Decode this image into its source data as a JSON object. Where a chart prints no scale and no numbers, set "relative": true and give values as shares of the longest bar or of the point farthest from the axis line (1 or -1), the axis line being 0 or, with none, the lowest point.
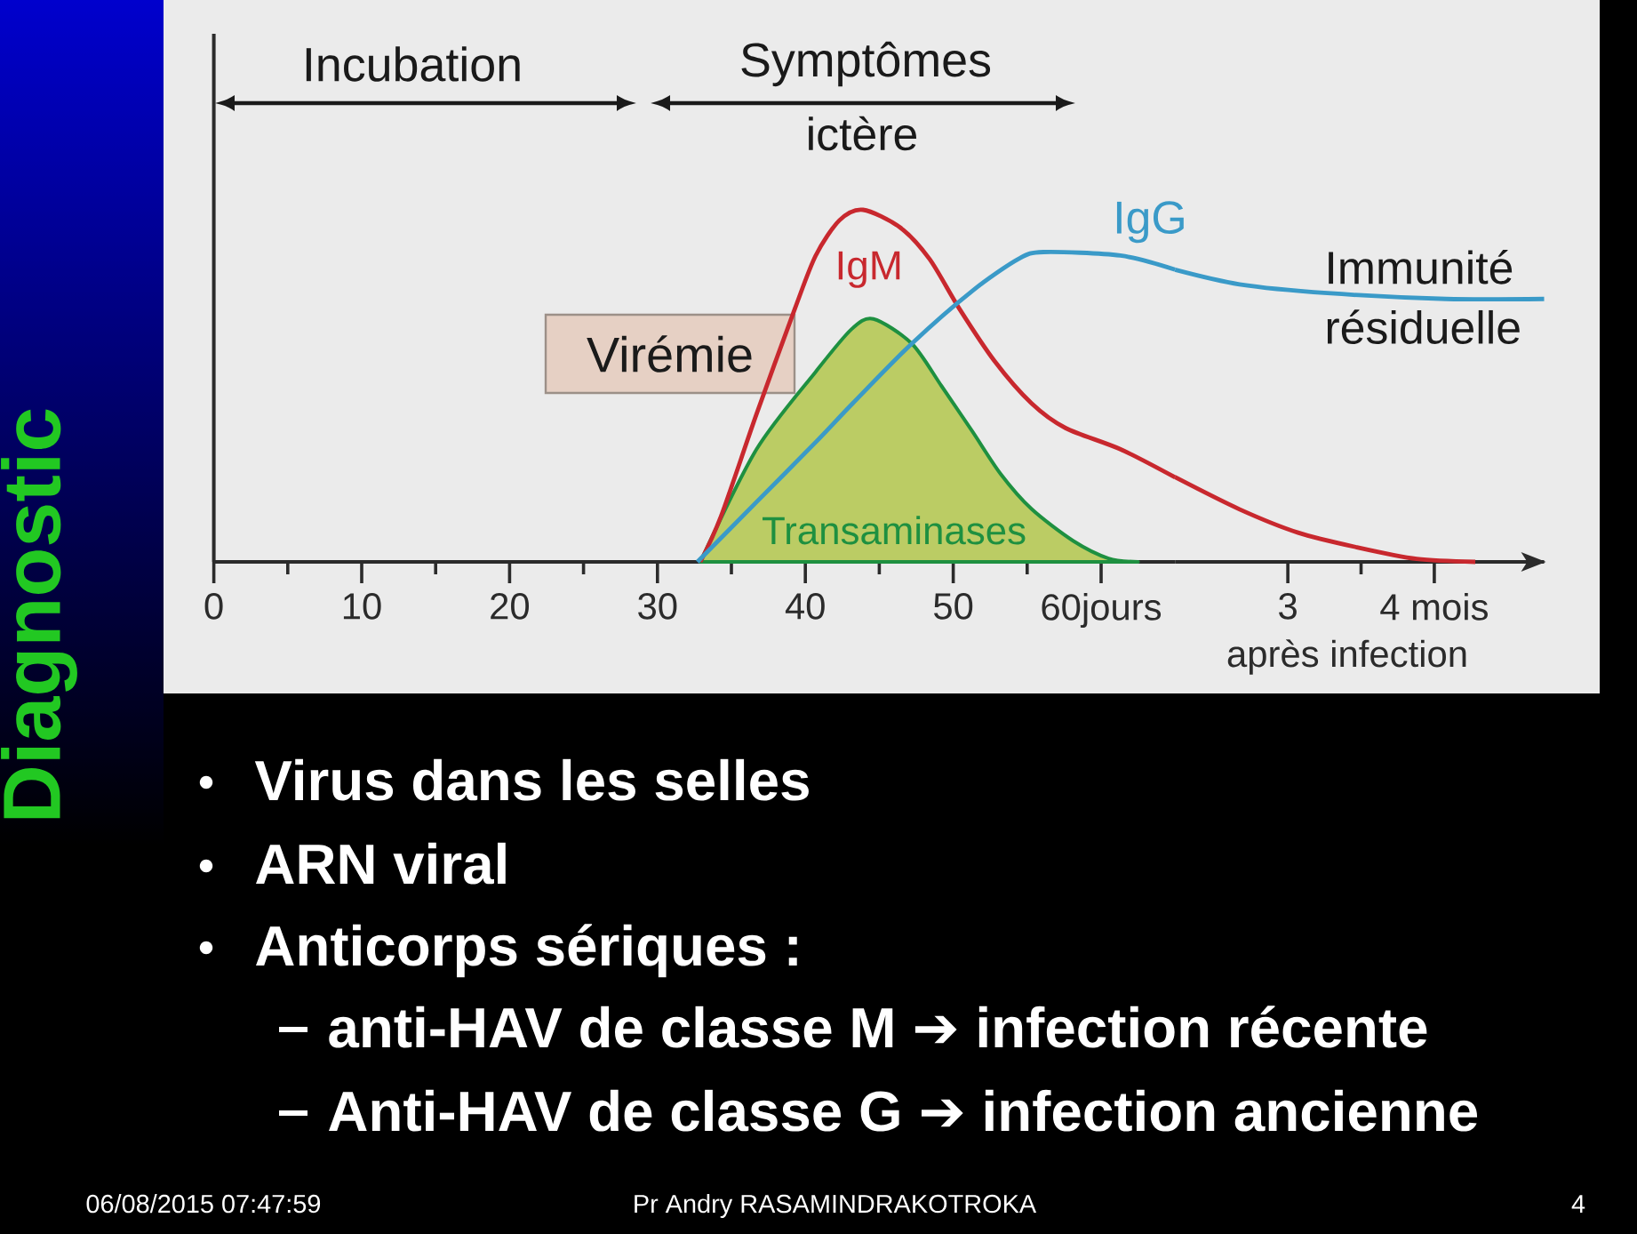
{
  "chart_data": [
    {
      "type": "line",
      "title": "Diagnostic",
      "relative": true,
      "legend": false,
      "grid": false,
      "marker": "none",
      "line_style": "solid",
      "xlim": [
        0,
        65
      ],
      "xticks": [
        0,
        {
          "value": 5,
          "label": null
        },
        10,
        {
          "value": 15,
          "label": null
        },
        20,
        {
          "value": 25,
          "label": null
        },
        30,
        {
          "value": 35,
          "label": null
        },
        40,
        {
          "value": 45,
          "label": null
        },
        50,
        {
          "value": 55,
          "label": null
        },
        {
          "value": 60,
          "label": "60jours"
        }
      ],
      "series": [
        {
          "name": "IgM",
          "color": "#c8282e",
          "x": [
            32.9,
            34.3,
            36.7,
            39.3,
            40.7,
            42.3,
            43.9,
            46.4,
            48.4,
            50.4,
            52.8,
            55.3,
            57.6,
            61.3,
            65
          ],
          "values": [
            0,
            0.13,
            0.42,
            0.72,
            0.87,
            0.97,
            1.0,
            0.95,
            0.86,
            0.72,
            0.57,
            0.45,
            0.38,
            0.32,
            0.24
          ]
        },
        {
          "name": "IgG",
          "color": "#3a9ac8",
          "x": [
            32.7,
            36.7,
            40.7,
            43.2,
            47.2,
            51.3,
            54.4,
            56.1,
            61.3,
            65
          ],
          "values": [
            0,
            0.17,
            0.34,
            0.45,
            0.62,
            0.77,
            0.86,
            0.88,
            0.87,
            0.83
          ]
        },
        {
          "name": "Transaminases",
          "type": "area",
          "color": "#1e9040",
          "x": [
            32.9,
            36.7,
            40.7,
            43.1,
            44.6,
            47.2,
            49.2,
            51.3,
            53.2,
            55.3,
            58.1,
            60.5,
            62.5
          ],
          "values": [
            0,
            0.32,
            0.54,
            0.66,
            0.69,
            0.62,
            0.5,
            0.37,
            0.25,
            0.15,
            0.06,
            0.01,
            0
          ]
        }
      ],
      "annotations": [
        "Incubation",
        "Symptômes",
        "ictère",
        "Virémie",
        "Immunité résiduelle",
        "Virus dans les selles",
        "ARN viral",
        "Anticorps sériques :",
        "anti-HAV de classe M ➔ infection récente",
        "Anti-HAV de classe G ➔ infection ancienne",
        "06/08/2015 07:47:59",
        "Pr Andry RASAMINDRAKOTROKA",
        "4"
      ]
    },
    {
      "type": "line",
      "xlabel": "après infection",
      "relative": true,
      "xlim": [
        2.23,
        4.75
      ],
      "xticks": [
        3,
        {
          "value": 3.5,
          "label": null
        },
        {
          "value": 4,
          "label": "4 mois"
        }
      ],
      "series": [
        {
          "color": "#c8282e",
          "x": [
            2.23,
            2.67,
            3.07,
            3.47,
            3.88,
            4.28
          ],
          "values": [
            0.29,
            0.18,
            0.1,
            0.05,
            0.01,
            0
          ]
        },
        {
          "color": "#3a9ac8",
          "x": [
            2.23,
            2.67,
            3.27,
            4.08,
            4.75
          ],
          "values": [
            1,
            0.95,
            0.92,
            0.9,
            0.9
          ]
        }
      ]
    }
  ]
}
